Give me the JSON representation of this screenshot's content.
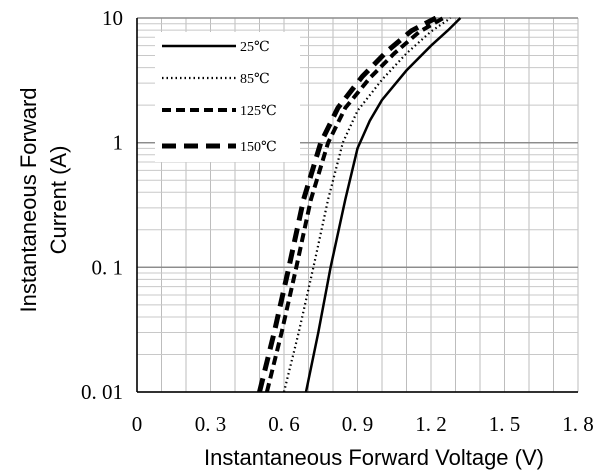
{
  "chart_data": {
    "type": "line",
    "xlabel": "Instantaneous Forward Voltage (V)",
    "ylabel_line1": "Instantaneous Forward",
    "ylabel_line2": "Current (A)",
    "xlim": [
      0,
      1.8
    ],
    "ylim": [
      0.01,
      10
    ],
    "yscale": "log",
    "x_ticks": [
      0,
      0.3,
      0.6,
      0.9,
      1.2,
      1.5,
      1.8
    ],
    "x_tick_labels": [
      "0",
      "0. 3",
      "0. 6",
      "0. 9",
      "1. 2",
      "1. 5",
      "1. 8"
    ],
    "y_ticks": [
      10,
      1,
      0.1,
      0.01
    ],
    "y_tick_labels": [
      "10",
      "1",
      "0. 1",
      "0. 01"
    ],
    "grid": true,
    "legend_position": "top-left",
    "series": [
      {
        "name": "25℃",
        "style": "solid",
        "color": "#000000",
        "points": [
          [
            0.69,
            0.01
          ],
          [
            0.74,
            0.03
          ],
          [
            0.79,
            0.1
          ],
          [
            0.85,
            0.35
          ],
          [
            0.9,
            0.9
          ],
          [
            0.95,
            1.5
          ],
          [
            1.0,
            2.2
          ],
          [
            1.1,
            3.8
          ],
          [
            1.2,
            6.0
          ],
          [
            1.27,
            8.0
          ],
          [
            1.32,
            10.0
          ]
        ]
      },
      {
        "name": "85℃",
        "style": "dotted",
        "color": "#000000",
        "points": [
          [
            0.6,
            0.01
          ],
          [
            0.66,
            0.03
          ],
          [
            0.72,
            0.1
          ],
          [
            0.78,
            0.35
          ],
          [
            0.84,
            1.0
          ],
          [
            0.9,
            1.8
          ],
          [
            1.0,
            3.2
          ],
          [
            1.1,
            5.2
          ],
          [
            1.2,
            7.8
          ],
          [
            1.28,
            10.0
          ]
        ]
      },
      {
        "name": "125℃",
        "style": "dashed",
        "color": "#000000",
        "points": [
          [
            0.53,
            0.01
          ],
          [
            0.59,
            0.03
          ],
          [
            0.65,
            0.1
          ],
          [
            0.71,
            0.35
          ],
          [
            0.78,
            1.0
          ],
          [
            0.85,
            1.9
          ],
          [
            0.95,
            3.3
          ],
          [
            1.05,
            5.2
          ],
          [
            1.15,
            7.7
          ],
          [
            1.25,
            10.0
          ]
        ]
      },
      {
        "name": "150℃",
        "style": "long-dashed",
        "color": "#000000",
        "points": [
          [
            0.5,
            0.01
          ],
          [
            0.56,
            0.03
          ],
          [
            0.62,
            0.1
          ],
          [
            0.68,
            0.35
          ],
          [
            0.75,
            1.0
          ],
          [
            0.82,
            1.9
          ],
          [
            0.92,
            3.4
          ],
          [
            1.02,
            5.4
          ],
          [
            1.12,
            7.9
          ],
          [
            1.22,
            10.0
          ]
        ]
      }
    ]
  }
}
